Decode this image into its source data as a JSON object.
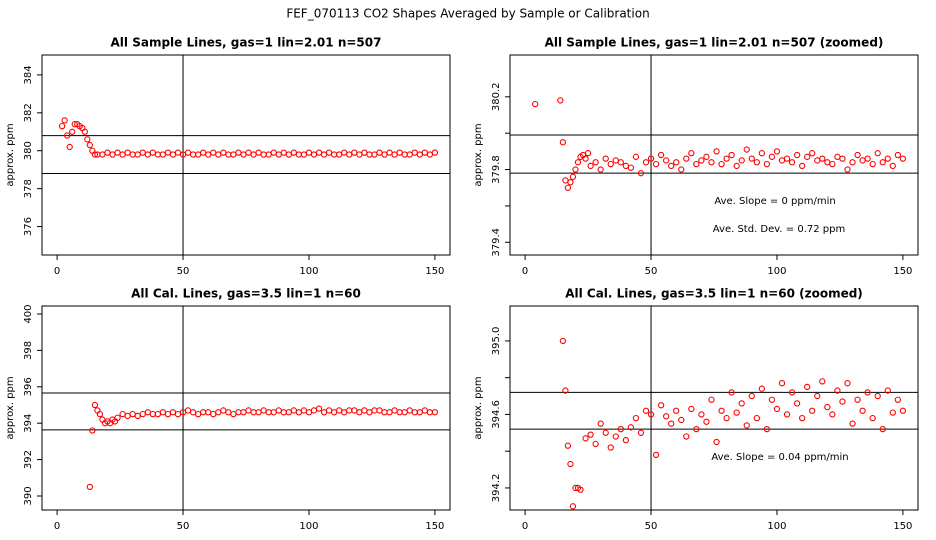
{
  "title": "FEF_070113  CO2 Shapes Averaged by Sample or Calibration",
  "chart_data": [
    {
      "type": "scatter",
      "title": "All Sample Lines, gas=1 lin=2.01 n=507",
      "ylabel": "approx. ppm",
      "color": "#ff0000",
      "xlim": [
        -6,
        156
      ],
      "ylim": [
        374.5,
        385.05
      ],
      "xticks": [
        0,
        50,
        100,
        150
      ],
      "yticks": [
        376,
        378,
        380,
        382,
        384
      ],
      "hlines": [
        380.8,
        378.8
      ],
      "vline": 50,
      "x": [
        2,
        3,
        4,
        5,
        6,
        7,
        8,
        9,
        10,
        11,
        12,
        13,
        14,
        15,
        16,
        18,
        20,
        22,
        24,
        26,
        28,
        30,
        32,
        34,
        36,
        38,
        40,
        42,
        44,
        46,
        48,
        50,
        52,
        54,
        56,
        58,
        60,
        62,
        64,
        66,
        68,
        70,
        72,
        74,
        76,
        78,
        80,
        82,
        84,
        86,
        88,
        90,
        92,
        94,
        96,
        98,
        100,
        102,
        104,
        106,
        108,
        110,
        112,
        114,
        116,
        118,
        120,
        122,
        124,
        126,
        128,
        130,
        132,
        134,
        136,
        138,
        140,
        142,
        144,
        146,
        148,
        150
      ],
      "values": [
        381.3,
        381.6,
        380.8,
        380.2,
        381.0,
        381.4,
        381.4,
        381.3,
        381.2,
        381.0,
        380.6,
        380.3,
        380.0,
        379.8,
        379.8,
        379.8,
        379.9,
        379.8,
        379.9,
        379.8,
        379.9,
        379.8,
        379.8,
        379.9,
        379.8,
        379.9,
        379.8,
        379.8,
        379.9,
        379.8,
        379.9,
        379.8,
        379.9,
        379.8,
        379.8,
        379.9,
        379.8,
        379.9,
        379.8,
        379.9,
        379.8,
        379.8,
        379.9,
        379.8,
        379.9,
        379.8,
        379.9,
        379.8,
        379.8,
        379.9,
        379.8,
        379.9,
        379.8,
        379.9,
        379.8,
        379.8,
        379.9,
        379.8,
        379.9,
        379.8,
        379.9,
        379.8,
        379.8,
        379.9,
        379.8,
        379.9,
        379.8,
        379.9,
        379.8,
        379.8,
        379.9,
        379.8,
        379.9,
        379.8,
        379.9,
        379.8,
        379.8,
        379.9,
        379.8,
        379.9,
        379.8,
        379.9
      ]
    },
    {
      "type": "scatter",
      "title": "All Sample Lines, gas=1 lin=2.01 n=507 (zoomed)",
      "ylabel": "approx. ppm",
      "color": "#ff0000",
      "xlim": [
        -6,
        156
      ],
      "ylim": [
        379.33,
        380.43
      ],
      "xticks": [
        0,
        50,
        100,
        150
      ],
      "yticks": [
        379.4,
        379.8,
        380.2
      ],
      "yminor": [
        379.6,
        380.0
      ],
      "hlines": [
        379.99,
        379.78
      ],
      "vline": 50,
      "annotations": [
        "Ave. Slope =  0  ppm/min",
        "Ave. Std. Dev. =  0.72  ppm"
      ],
      "x": [
        4,
        14,
        15,
        16,
        17,
        18,
        19,
        20,
        21,
        22,
        23,
        24,
        25,
        26,
        28,
        30,
        32,
        34,
        36,
        38,
        40,
        42,
        44,
        46,
        48,
        50,
        52,
        54,
        56,
        58,
        60,
        62,
        64,
        66,
        68,
        70,
        72,
        74,
        76,
        78,
        80,
        82,
        84,
        86,
        88,
        90,
        92,
        94,
        96,
        98,
        100,
        102,
        104,
        106,
        108,
        110,
        112,
        114,
        116,
        118,
        120,
        122,
        124,
        126,
        128,
        130,
        132,
        134,
        136,
        138,
        140,
        142,
        144,
        146,
        148,
        150
      ],
      "values": [
        380.16,
        380.18,
        379.95,
        379.74,
        379.7,
        379.73,
        379.76,
        379.8,
        379.84,
        379.87,
        379.88,
        379.86,
        379.89,
        379.82,
        379.84,
        379.8,
        379.86,
        379.83,
        379.85,
        379.84,
        379.82,
        379.81,
        379.87,
        379.78,
        379.84,
        379.86,
        379.83,
        379.88,
        379.85,
        379.82,
        379.84,
        379.8,
        379.86,
        379.89,
        379.83,
        379.85,
        379.87,
        379.84,
        379.9,
        379.83,
        379.86,
        379.88,
        379.82,
        379.85,
        379.91,
        379.86,
        379.84,
        379.89,
        379.83,
        379.87,
        379.9,
        379.85,
        379.86,
        379.84,
        379.88,
        379.82,
        379.87,
        379.89,
        379.85,
        379.86,
        379.84,
        379.83,
        379.87,
        379.86,
        379.8,
        379.84,
        379.88,
        379.85,
        379.86,
        379.83,
        379.89,
        379.84,
        379.86,
        379.82,
        379.88,
        379.86
      ]
    },
    {
      "type": "scatter",
      "title": "All Cal. Lines, gas=3.5 lin=1 n=60",
      "ylabel": "approx. ppm",
      "color": "#ff0000",
      "xlim": [
        -6,
        156
      ],
      "ylim": [
        389.23,
        400.44
      ],
      "xticks": [
        0,
        50,
        100,
        150
      ],
      "yticks": [
        390,
        392,
        394,
        396,
        398,
        400
      ],
      "hlines": [
        395.66,
        393.63
      ],
      "vline": 50,
      "x": [
        13,
        14,
        15,
        16,
        17,
        18,
        19,
        20,
        21,
        22,
        23,
        24,
        26,
        28,
        30,
        32,
        34,
        36,
        38,
        40,
        42,
        44,
        46,
        48,
        50,
        52,
        54,
        56,
        58,
        60,
        62,
        64,
        66,
        68,
        70,
        72,
        74,
        76,
        78,
        80,
        82,
        84,
        86,
        88,
        90,
        92,
        94,
        96,
        98,
        100,
        102,
        104,
        106,
        108,
        110,
        112,
        114,
        116,
        118,
        120,
        122,
        124,
        126,
        128,
        130,
        132,
        134,
        136,
        138,
        140,
        142,
        144,
        146,
        148,
        150
      ],
      "values": [
        390.5,
        393.6,
        395.0,
        394.7,
        394.5,
        394.2,
        394.0,
        394.1,
        394.0,
        394.2,
        394.1,
        394.3,
        394.5,
        394.4,
        394.5,
        394.4,
        394.5,
        394.6,
        394.5,
        394.5,
        394.6,
        394.5,
        394.6,
        394.5,
        394.6,
        394.7,
        394.6,
        394.5,
        394.6,
        394.6,
        394.5,
        394.6,
        394.7,
        394.6,
        394.5,
        394.6,
        394.6,
        394.7,
        394.6,
        394.6,
        394.7,
        394.6,
        394.6,
        394.7,
        394.6,
        394.6,
        394.7,
        394.6,
        394.7,
        394.6,
        394.7,
        394.8,
        394.6,
        394.7,
        394.6,
        394.7,
        394.6,
        394.7,
        394.7,
        394.6,
        394.7,
        394.6,
        394.7,
        394.7,
        394.6,
        394.6,
        394.7,
        394.6,
        394.6,
        394.7,
        394.6,
        394.6,
        394.7,
        394.6,
        394.6
      ]
    },
    {
      "type": "scatter",
      "title": "All Cal. Lines, gas=3.5 lin=1 n=60 (zoomed)",
      "ylabel": "approx. ppm",
      "color": "#ff0000",
      "xlim": [
        -6,
        156
      ],
      "ylim": [
        394.08,
        395.19
      ],
      "xticks": [
        0,
        50,
        100,
        150
      ],
      "yticks": [
        394.2,
        394.6,
        {
          "value": 395,
          "label": "395.0"
        }
      ],
      "yminor": [
        394.4,
        394.8
      ],
      "hlines": [
        394.72,
        394.52
      ],
      "vline": 50,
      "annotations": [
        "Ave. Slope =  0.04  ppm/min"
      ],
      "x": [
        15,
        16,
        17,
        18,
        19,
        20,
        21,
        22,
        24,
        26,
        28,
        30,
        32,
        34,
        36,
        38,
        40,
        42,
        44,
        46,
        48,
        50,
        52,
        54,
        56,
        58,
        60,
        62,
        64,
        66,
        68,
        70,
        72,
        74,
        76,
        78,
        80,
        82,
        84,
        86,
        88,
        90,
        92,
        94,
        96,
        98,
        100,
        102,
        104,
        106,
        108,
        110,
        112,
        114,
        116,
        118,
        120,
        122,
        124,
        126,
        128,
        130,
        132,
        134,
        136,
        138,
        140,
        142,
        144,
        146,
        148,
        150
      ],
      "values": [
        395.0,
        394.73,
        394.43,
        394.33,
        394.1,
        394.2,
        394.2,
        394.19,
        394.47,
        394.49,
        394.44,
        394.55,
        394.5,
        394.42,
        394.48,
        394.52,
        394.46,
        394.53,
        394.58,
        394.5,
        394.62,
        394.6,
        394.38,
        394.65,
        394.59,
        394.55,
        394.62,
        394.57,
        394.48,
        394.63,
        394.52,
        394.6,
        394.56,
        394.68,
        394.45,
        394.62,
        394.58,
        394.72,
        394.61,
        394.66,
        394.54,
        394.7,
        394.58,
        394.74,
        394.52,
        394.68,
        394.63,
        394.77,
        394.6,
        394.72,
        394.66,
        394.58,
        394.75,
        394.62,
        394.7,
        394.78,
        394.64,
        394.6,
        394.73,
        394.67,
        394.77,
        394.55,
        394.68,
        394.62,
        394.72,
        394.58,
        394.7,
        394.52,
        394.73,
        394.61,
        394.68,
        394.62
      ]
    }
  ]
}
